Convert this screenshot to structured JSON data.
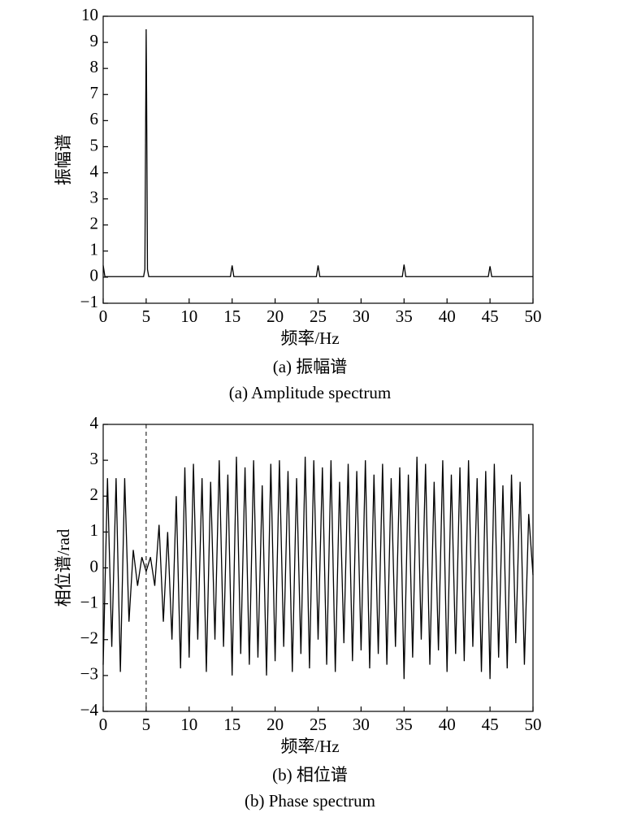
{
  "chart_data": [
    {
      "type": "line",
      "ylabel": "振幅谱",
      "xlabel": "频率/Hz",
      "caption": "(a) 振幅谱",
      "caption_en": "(a) Amplitude spectrum",
      "xlim": [
        0,
        50
      ],
      "xticks": [
        0,
        5,
        10,
        15,
        20,
        25,
        30,
        35,
        40,
        45,
        50
      ],
      "ylim": [
        -1,
        10
      ],
      "yticks": [
        {
          "value": -1,
          "label": "−1"
        },
        0,
        1,
        2,
        3,
        4,
        5,
        6,
        7,
        8,
        9,
        10
      ],
      "series": [
        {
          "color": "#000000",
          "x": [
            0,
            0.2,
            4.7,
            4.85,
            4.95,
            5,
            5.05,
            5.15,
            5.3,
            14.8,
            15,
            15.2,
            24.8,
            25,
            25.2,
            34.8,
            35,
            35.2,
            44.8,
            45,
            45.2,
            50
          ],
          "values": [
            0.45,
            0.02,
            0.02,
            0.3,
            6.5,
            9.5,
            7.1,
            0.3,
            0.02,
            0.02,
            0.45,
            0.02,
            0.02,
            0.45,
            0.02,
            0.02,
            0.48,
            0.02,
            0.02,
            0.42,
            0.02,
            0.02
          ]
        }
      ]
    },
    {
      "type": "line",
      "ylabel": "相位谱/rad",
      "xlabel": "频率/Hz",
      "caption": "(b) 相位谱",
      "caption_en": "(b) Phase spectrum",
      "xlim": [
        0,
        50
      ],
      "xticks": [
        0,
        5,
        10,
        15,
        20,
        25,
        30,
        35,
        40,
        45,
        50
      ],
      "ylim": [
        -4,
        4
      ],
      "yticks": [
        {
          "value": -4,
          "label": "−4"
        },
        {
          "value": -3,
          "label": "−3"
        },
        {
          "value": -2,
          "label": "−2"
        },
        {
          "value": -1,
          "label": "−1"
        },
        0,
        1,
        2,
        3,
        4
      ],
      "vline_x": 5,
      "series": [
        {
          "color": "#000000",
          "x": [
            0,
            0.5,
            1,
            1.5,
            2,
            2.5,
            3,
            3.5,
            4,
            4.5,
            5,
            5.5,
            6,
            6.5,
            7,
            7.5,
            8,
            8.5,
            9,
            9.5,
            10,
            10.5,
            11,
            11.5,
            12,
            12.5,
            13,
            13.5,
            14,
            14.5,
            15,
            15.5,
            16,
            16.5,
            17,
            17.5,
            18,
            18.5,
            19,
            19.5,
            20,
            20.5,
            21,
            21.5,
            22,
            22.5,
            23,
            23.5,
            24,
            24.5,
            25,
            25.5,
            26,
            26.5,
            27,
            27.5,
            28,
            28.5,
            29,
            29.5,
            30,
            30.5,
            31,
            31.5,
            32,
            32.5,
            33,
            33.5,
            34,
            34.5,
            35,
            35.5,
            36,
            36.5,
            37,
            37.5,
            38,
            38.5,
            39,
            39.5,
            40,
            40.5,
            41,
            41.5,
            42,
            42.5,
            43,
            43.5,
            44,
            44.5,
            45,
            45.5,
            46,
            46.5,
            47,
            47.5,
            48,
            48.5,
            49,
            49.5,
            50
          ],
          "values": [
            -2.7,
            2.5,
            -2.2,
            2.5,
            -2.9,
            2.5,
            -1.5,
            0.5,
            -0.5,
            0.3,
            -0.1,
            0.3,
            -0.5,
            1.2,
            -1.5,
            1.0,
            -2.0,
            2.0,
            -2.8,
            2.8,
            -2.5,
            2.9,
            -2.0,
            2.5,
            -2.9,
            2.4,
            -2.0,
            3.0,
            -2.2,
            2.6,
            -3.0,
            3.1,
            -2.4,
            2.8,
            -2.7,
            3.0,
            -2.5,
            2.3,
            -3.0,
            2.9,
            -2.6,
            3.0,
            -2.2,
            2.7,
            -2.9,
            2.5,
            -2.4,
            3.1,
            -2.8,
            3.0,
            -2.0,
            2.8,
            -2.7,
            3.0,
            -2.9,
            2.4,
            -2.1,
            2.9,
            -2.6,
            2.7,
            -2.3,
            3.0,
            -2.8,
            2.6,
            -2.4,
            2.9,
            -2.7,
            2.5,
            -2.2,
            2.8,
            -3.1,
            2.6,
            -2.5,
            3.1,
            -2.0,
            2.9,
            -2.7,
            2.4,
            -2.3,
            3.0,
            -2.9,
            2.6,
            -2.4,
            2.8,
            -2.6,
            3.0,
            -2.2,
            2.5,
            -2.9,
            2.7,
            -3.1,
            2.9,
            -2.5,
            2.3,
            -2.8,
            2.6,
            -2.1,
            2.4,
            -2.7,
            1.5,
            -0.2
          ]
        }
      ]
    }
  ]
}
